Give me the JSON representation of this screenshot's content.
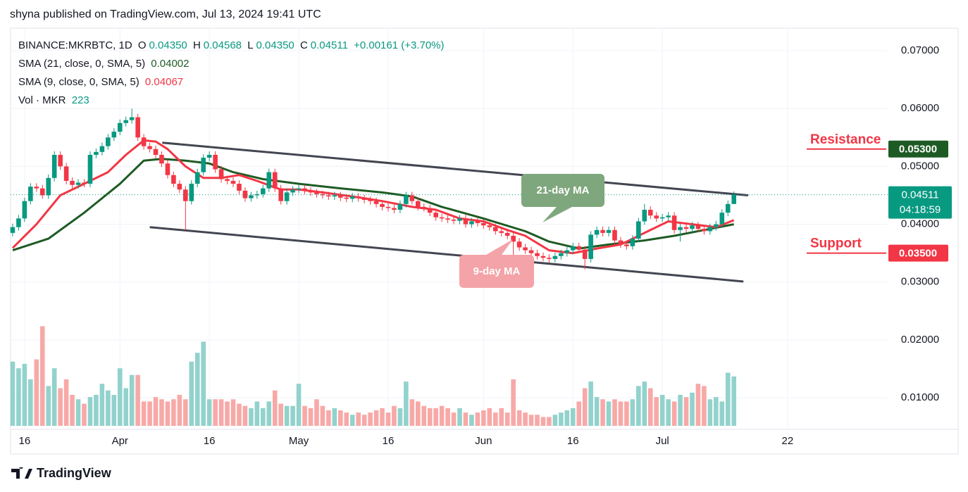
{
  "header": {
    "title": "shyna published on TradingView.com, Jul 13, 2024 19:41 UTC"
  },
  "legend": {
    "symbol": "BINANCE:MKRBTC, 1D",
    "ohlc": [
      {
        "key": "O",
        "value": "0.04350"
      },
      {
        "key": "H",
        "value": "0.04568"
      },
      {
        "key": "L",
        "value": "0.04350"
      },
      {
        "key": "C",
        "value": "0.04511"
      }
    ],
    "change": "+0.00161 (+3.70%)",
    "sma21": {
      "label": "SMA (21, close, 0, SMA, 5)",
      "value": "0.04002"
    },
    "sma9": {
      "label": "SMA (9, close, 0, SMA, 5)",
      "value": "0.04067"
    },
    "vol": {
      "label": "Vol · MKR",
      "value": "223"
    }
  },
  "footer": {
    "brand": "TradingView"
  },
  "chart_data": {
    "type": "candlestick",
    "up_color": "#089981",
    "down_color": "#f23645",
    "vol_up_color": "#92d2cc",
    "vol_down_color": "#f7a9a7",
    "xlim": [
      -0.35,
      146.8
    ],
    "xticks": [
      {
        "value": 2,
        "label": "16"
      },
      {
        "value": 18,
        "label": "Apr"
      },
      {
        "value": 33,
        "label": "16"
      },
      {
        "value": 48,
        "label": "May"
      },
      {
        "value": 63,
        "label": "16"
      },
      {
        "value": 79,
        "label": "Jun"
      },
      {
        "value": 94,
        "label": "16"
      },
      {
        "value": 109,
        "label": "Jul"
      },
      {
        "value": 130,
        "label": "22"
      }
    ],
    "ylim": [
      0.00454,
      0.0739
    ],
    "yticks": [
      {
        "value": 0.01,
        "label": "0.01000"
      },
      {
        "value": 0.02,
        "label": "0.02000"
      },
      {
        "value": 0.03,
        "label": "0.03000"
      },
      {
        "value": 0.04,
        "label": "0.04000"
      },
      {
        "value": 0.05,
        "label": "0.05000"
      },
      {
        "value": 0.06,
        "label": "0.06000"
      },
      {
        "value": 0.07,
        "label": "0.07000"
      }
    ],
    "grid": true,
    "vol_lim": [
      0,
      480
    ],
    "open": [
      0.0385,
      0.0395,
      0.041,
      0.044,
      0.0465,
      0.0462,
      0.045,
      0.048,
      0.052,
      0.05,
      0.0475,
      0.0468,
      0.0472,
      0.047,
      0.052,
      0.0525,
      0.0535,
      0.055,
      0.056,
      0.0575,
      0.058,
      0.0585,
      0.055,
      0.0535,
      0.053,
      0.052,
      0.0505,
      0.0485,
      0.047,
      0.046,
      0.044,
      0.047,
      0.049,
      0.0515,
      0.052,
      0.0495,
      0.0478,
      0.0475,
      0.047,
      0.0458,
      0.0445,
      0.045,
      0.0452,
      0.0462,
      0.049,
      0.0462,
      0.044,
      0.0455,
      0.046,
      0.0462,
      0.0458,
      0.0455,
      0.0452,
      0.045,
      0.0448,
      0.045,
      0.0446,
      0.0444,
      0.0448,
      0.0445,
      0.0442,
      0.044,
      0.0435,
      0.043,
      0.0428,
      0.0425,
      0.0435,
      0.045,
      0.044,
      0.043,
      0.0428,
      0.042,
      0.0412,
      0.041,
      0.0408,
      0.0406,
      0.041,
      0.04,
      0.0405,
      0.0402,
      0.0398,
      0.0395,
      0.0388,
      0.0385,
      0.038,
      0.037,
      0.036,
      0.0355,
      0.035,
      0.0345,
      0.0342,
      0.034,
      0.0345,
      0.035,
      0.0355,
      0.0362,
      0.0356,
      0.034,
      0.0382,
      0.039,
      0.0385,
      0.039,
      0.0372,
      0.0365,
      0.0362,
      0.0375,
      0.0405,
      0.0425,
      0.0415,
      0.041,
      0.0412,
      0.0415,
      0.039,
      0.0395,
      0.0392,
      0.0398,
      0.0392,
      0.0388,
      0.0395,
      0.04,
      0.042,
      0.0435
    ],
    "high": [
      0.0401,
      0.0416,
      0.0446,
      0.0471,
      0.0471,
      0.0468,
      0.0486,
      0.0526,
      0.0526,
      0.0506,
      0.0481,
      0.0478,
      0.0478,
      0.0526,
      0.0531,
      0.0541,
      0.0556,
      0.0566,
      0.0581,
      0.0586,
      0.06,
      0.0591,
      0.0556,
      0.0541,
      0.0536,
      0.0526,
      0.0511,
      0.0491,
      0.0476,
      0.0466,
      0.0476,
      0.0496,
      0.0521,
      0.0526,
      0.0526,
      0.0501,
      0.0484,
      0.0481,
      0.0476,
      0.0464,
      0.0456,
      0.0458,
      0.0468,
      0.0496,
      0.0496,
      0.0468,
      0.0461,
      0.0466,
      0.0468,
      0.0468,
      0.0464,
      0.0461,
      0.0458,
      0.0456,
      0.0456,
      0.0456,
      0.0452,
      0.0454,
      0.0454,
      0.0451,
      0.0448,
      0.0446,
      0.0441,
      0.0436,
      0.0434,
      0.0441,
      0.0456,
      0.0456,
      0.0446,
      0.0436,
      0.0434,
      0.0426,
      0.0418,
      0.0416,
      0.0414,
      0.0416,
      0.0416,
      0.0411,
      0.0411,
      0.0408,
      0.0404,
      0.0401,
      0.0394,
      0.0391,
      0.0386,
      0.0376,
      0.0366,
      0.0361,
      0.0356,
      0.0351,
      0.0348,
      0.0351,
      0.0356,
      0.0361,
      0.0368,
      0.0368,
      0.0362,
      0.0388,
      0.0396,
      0.0396,
      0.0396,
      0.0396,
      0.0378,
      0.0371,
      0.0381,
      0.0411,
      0.0435,
      0.0431,
      0.0421,
      0.0418,
      0.0421,
      0.0421,
      0.0401,
      0.0401,
      0.0404,
      0.0404,
      0.0398,
      0.0401,
      0.0406,
      0.0426,
      0.0441,
      0.04568
    ],
    "low": [
      0.0379,
      0.0389,
      0.0404,
      0.0434,
      0.0456,
      0.0444,
      0.0444,
      0.0474,
      0.0494,
      0.0469,
      0.0462,
      0.0462,
      0.0464,
      0.0464,
      0.0514,
      0.0519,
      0.0529,
      0.0544,
      0.0554,
      0.0569,
      0.0574,
      0.0544,
      0.0529,
      0.0524,
      0.0514,
      0.0499,
      0.0479,
      0.0464,
      0.0454,
      0.039,
      0.0434,
      0.0464,
      0.0484,
      0.0509,
      0.0489,
      0.0472,
      0.0469,
      0.0464,
      0.0452,
      0.0439,
      0.0439,
      0.0444,
      0.0446,
      0.0456,
      0.0456,
      0.0434,
      0.0434,
      0.0449,
      0.0454,
      0.0452,
      0.0449,
      0.0446,
      0.0444,
      0.0442,
      0.0442,
      0.044,
      0.0438,
      0.0438,
      0.0439,
      0.0436,
      0.0434,
      0.0429,
      0.0424,
      0.0422,
      0.0419,
      0.0419,
      0.0429,
      0.0434,
      0.0424,
      0.0422,
      0.0414,
      0.0406,
      0.0404,
      0.0402,
      0.04,
      0.04,
      0.0394,
      0.0394,
      0.0396,
      0.0392,
      0.0389,
      0.0382,
      0.0379,
      0.0374,
      0.033,
      0.0354,
      0.0349,
      0.0344,
      0.0339,
      0.0336,
      0.0334,
      0.0334,
      0.0339,
      0.0344,
      0.0349,
      0.035,
      0.0322,
      0.0334,
      0.0376,
      0.0379,
      0.0379,
      0.0366,
      0.0359,
      0.0356,
      0.0356,
      0.0369,
      0.0399,
      0.0409,
      0.0404,
      0.0404,
      0.0406,
      0.0384,
      0.037,
      0.0386,
      0.0386,
      0.0386,
      0.0382,
      0.0382,
      0.0389,
      0.0394,
      0.0414,
      0.0435
    ],
    "close": [
      0.0395,
      0.041,
      0.044,
      0.0465,
      0.0462,
      0.045,
      0.048,
      0.052,
      0.05,
      0.0475,
      0.0468,
      0.0472,
      0.047,
      0.052,
      0.0525,
      0.0535,
      0.055,
      0.056,
      0.0575,
      0.058,
      0.0585,
      0.055,
      0.0535,
      0.053,
      0.052,
      0.0505,
      0.0485,
      0.047,
      0.046,
      0.044,
      0.047,
      0.049,
      0.0515,
      0.052,
      0.0495,
      0.0478,
      0.0475,
      0.047,
      0.0458,
      0.0445,
      0.045,
      0.0452,
      0.0462,
      0.049,
      0.0462,
      0.044,
      0.0455,
      0.046,
      0.0462,
      0.0458,
      0.0455,
      0.0452,
      0.045,
      0.0448,
      0.045,
      0.0446,
      0.0444,
      0.0448,
      0.0445,
      0.0442,
      0.044,
      0.0435,
      0.043,
      0.0428,
      0.0425,
      0.0435,
      0.045,
      0.044,
      0.043,
      0.0428,
      0.042,
      0.0412,
      0.041,
      0.0408,
      0.0406,
      0.041,
      0.04,
      0.0405,
      0.0402,
      0.0398,
      0.0395,
      0.0388,
      0.0385,
      0.038,
      0.037,
      0.036,
      0.0355,
      0.035,
      0.0345,
      0.0342,
      0.034,
      0.0345,
      0.035,
      0.0355,
      0.0362,
      0.0356,
      0.034,
      0.0382,
      0.039,
      0.0385,
      0.039,
      0.0372,
      0.0365,
      0.0362,
      0.0375,
      0.0405,
      0.0425,
      0.0415,
      0.041,
      0.0412,
      0.0415,
      0.039,
      0.0395,
      0.0392,
      0.0398,
      0.0392,
      0.0388,
      0.0395,
      0.04,
      0.042,
      0.0435,
      0.04511
    ],
    "volume": [
      290,
      260,
      280,
      210,
      300,
      450,
      180,
      260,
      170,
      210,
      140,
      120,
      100,
      130,
      140,
      190,
      160,
      140,
      260,
      170,
      230,
      230,
      110,
      110,
      130,
      120,
      110,
      120,
      140,
      120,
      290,
      330,
      380,
      120,
      120,
      120,
      110,
      120,
      100,
      90,
      80,
      110,
      80,
      110,
      160,
      100,
      90,
      90,
      190,
      90,
      80,
      120,
      90,
      70,
      80,
      70,
      60,
      50,
      60,
      50,
      60,
      70,
      80,
      60,
      90,
      80,
      200,
      120,
      110,
      90,
      80,
      80,
      90,
      80,
      60,
      80,
      60,
      50,
      60,
      70,
      80,
      60,
      80,
      60,
      210,
      70,
      60,
      50,
      50,
      40,
      40,
      50,
      60,
      70,
      80,
      110,
      170,
      200,
      130,
      120,
      110,
      120,
      110,
      110,
      120,
      180,
      200,
      170,
      130,
      140,
      120,
      110,
      140,
      130,
      150,
      190,
      180,
      120,
      130,
      110,
      240,
      223
    ],
    "series": [
      {
        "name": "SMA 21",
        "color": "#1e5b24",
        "x": [
          0,
          6,
          12,
          18,
          22,
          25,
          29,
          33,
          37,
          42,
          48,
          55,
          62,
          67,
          72,
          79,
          86,
          90,
          95,
          100,
          106,
          111,
          116,
          121
        ],
        "values": [
          0.0355,
          0.0375,
          0.042,
          0.047,
          0.051,
          0.0513,
          0.051,
          0.0505,
          0.049,
          0.0478,
          0.047,
          0.0462,
          0.0455,
          0.0448,
          0.043,
          0.041,
          0.0388,
          0.037,
          0.0358,
          0.0365,
          0.0372,
          0.038,
          0.039,
          0.04
        ]
      },
      {
        "name": "SMA 9",
        "color": "#f23645",
        "x": [
          0,
          4,
          8,
          12,
          16,
          19,
          22,
          24,
          26,
          29,
          32,
          35,
          38,
          41,
          45,
          48,
          52,
          57,
          62,
          67,
          71,
          75,
          79,
          83,
          86,
          90,
          94,
          98,
          102,
          106,
          110,
          114,
          118,
          121
        ],
        "values": [
          0.0359,
          0.04,
          0.045,
          0.047,
          0.049,
          0.052,
          0.0545,
          0.0543,
          0.053,
          0.05,
          0.048,
          0.048,
          0.0485,
          0.0475,
          0.046,
          0.046,
          0.0455,
          0.0448,
          0.044,
          0.043,
          0.0425,
          0.041,
          0.0405,
          0.039,
          0.038,
          0.0355,
          0.035,
          0.0358,
          0.0365,
          0.0385,
          0.0405,
          0.04,
          0.0395,
          0.0407
        ]
      }
    ],
    "trendlines": [
      {
        "color": "#434651",
        "x": [
          25.1,
          123.4
        ],
        "values": [
          0.0541,
          0.045
        ]
      },
      {
        "color": "#434651",
        "x": [
          23.0,
          122.6
        ],
        "values": [
          0.0395,
          0.0301
        ]
      }
    ],
    "annotations": [
      {
        "text": "21-day MA",
        "color": "#7fa77d"
      },
      {
        "text": "9-day MA",
        "color": "#f4a3a8"
      }
    ],
    "levels": [
      {
        "label": "Resistance",
        "value": 0.053,
        "price_label": "0.05300",
        "color": "#f23645",
        "tag_color": "#1e5b24"
      },
      {
        "label": "Support",
        "value": 0.035,
        "price_label": "0.03500",
        "color": "#f23645",
        "tag_color": "#f23645"
      }
    ],
    "last_price": {
      "value": 0.04511,
      "label": "0.04511",
      "countdown": "04:18:59",
      "color": "#089981"
    }
  }
}
